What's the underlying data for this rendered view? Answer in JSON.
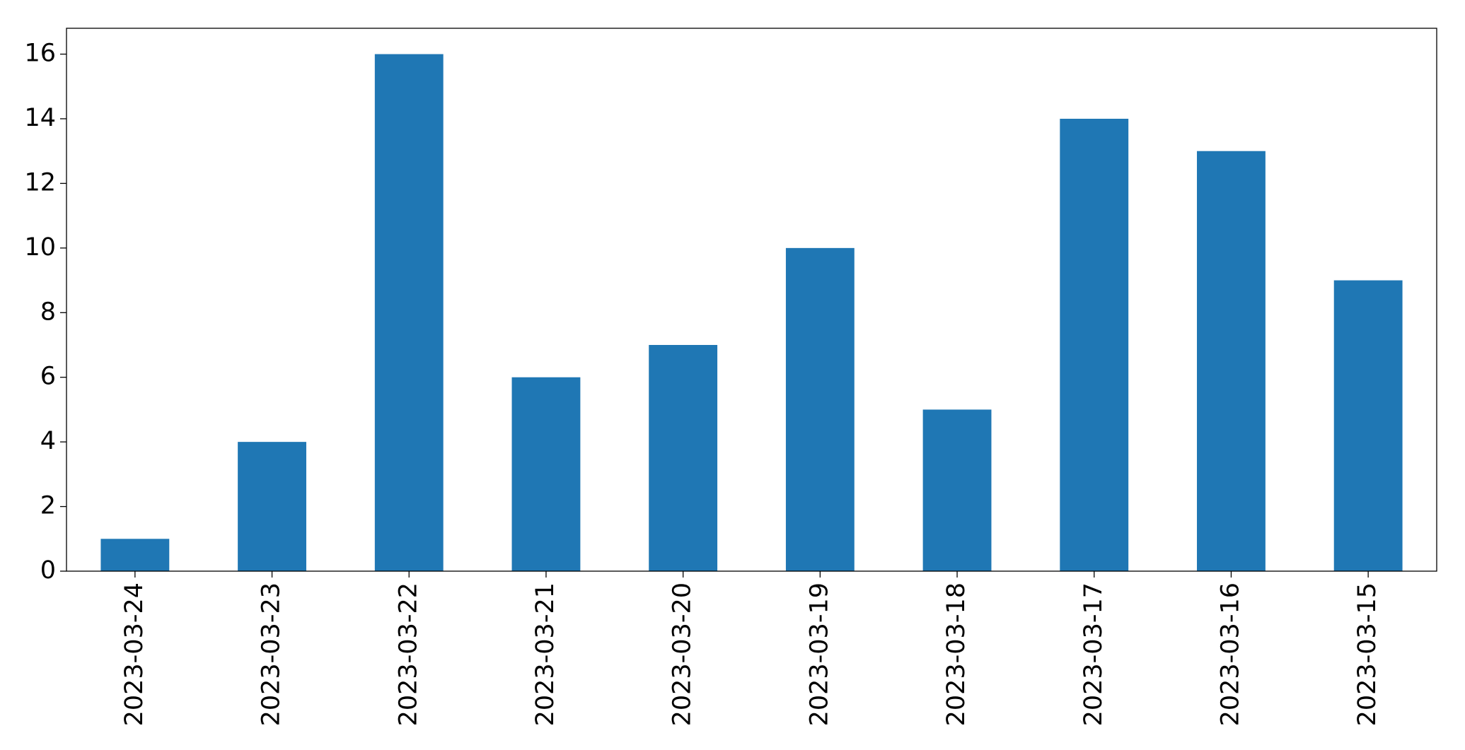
{
  "chart_data": {
    "type": "bar",
    "categories": [
      "2023-03-24",
      "2023-03-23",
      "2023-03-22",
      "2023-03-21",
      "2023-03-20",
      "2023-03-19",
      "2023-03-18",
      "2023-03-17",
      "2023-03-16",
      "2023-03-15"
    ],
    "values": [
      1,
      4,
      16,
      6,
      7,
      10,
      5,
      14,
      13,
      9
    ],
    "color": "#1f77b4",
    "ylim": [
      0,
      16.8
    ],
    "yticks": [
      0,
      2,
      4,
      6,
      8,
      10,
      12,
      14,
      16
    ],
    "grid": false
  }
}
